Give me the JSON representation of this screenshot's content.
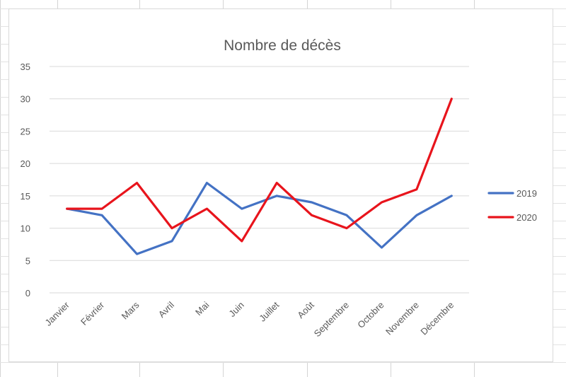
{
  "chart_data": {
    "type": "line",
    "title": "Nombre de décès",
    "xlabel": "",
    "ylabel": "",
    "categories": [
      "Janvier",
      "Février",
      "Mars",
      "Avril",
      "Mai",
      "Juin",
      "Juillet",
      "Août",
      "Septembre",
      "Octobre",
      "Novembre",
      "Décembre"
    ],
    "series": [
      {
        "name": "2019",
        "color": "#4472c4",
        "values": [
          13,
          12,
          6,
          8,
          17,
          13,
          15,
          14,
          12,
          7,
          12,
          15
        ]
      },
      {
        "name": "2020",
        "color": "#e8141c",
        "values": [
          13,
          13,
          17,
          10,
          13,
          8,
          17,
          12,
          10,
          14,
          16,
          30
        ]
      }
    ],
    "ylim": [
      0,
      35
    ],
    "yticks": [
      "0",
      "5",
      "10",
      "15",
      "20",
      "25",
      "30",
      "35"
    ],
    "grid": "horizontal",
    "legend_position": "right"
  }
}
